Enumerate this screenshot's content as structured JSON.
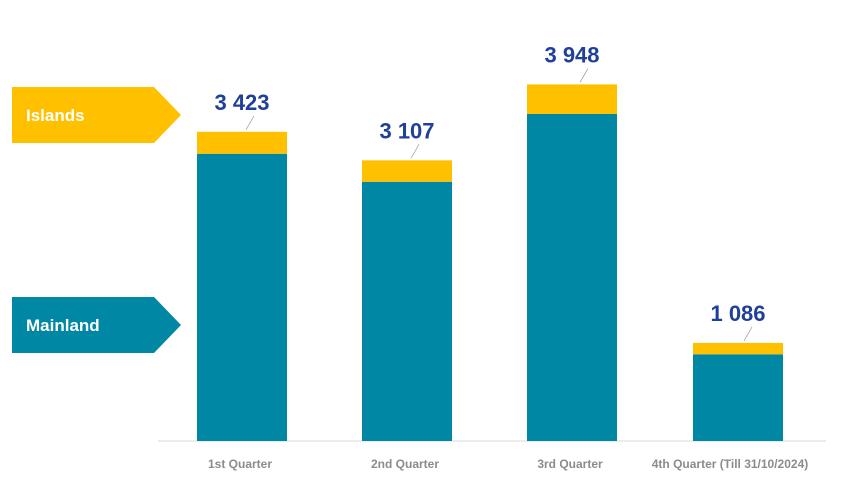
{
  "chart_data": {
    "type": "bar",
    "stacked": true,
    "categories": [
      "1st Quarter",
      "2nd Quarter",
      "3rd Quarter",
      "4th Quarter (Till 31/10/2024)"
    ],
    "series": [
      {
        "name": "Mainland",
        "color": "#0087a4",
        "values": [
          3180,
          2870,
          3620,
          960
        ]
      },
      {
        "name": "Islands",
        "color": "#ffc000",
        "values": [
          243,
          237,
          328,
          126
        ]
      }
    ],
    "totals": [
      3423,
      3107,
      3948,
      1086
    ],
    "total_labels": [
      "3 423",
      "3 107",
      "3 948",
      "1 086"
    ],
    "legend": {
      "placement": "left",
      "style": "arrow-tags"
    },
    "grid": false,
    "ylim": [
      0,
      4550
    ]
  }
}
